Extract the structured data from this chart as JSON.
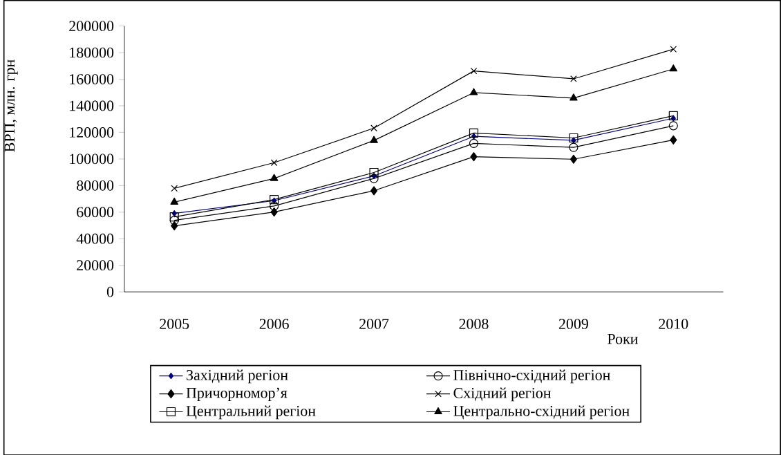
{
  "chart_data": {
    "type": "line",
    "xlabel": "Роки",
    "ylabel": "ВРП, млн. грн",
    "categories": [
      "2005",
      "2006",
      "2007",
      "2008",
      "2009",
      "2010"
    ],
    "ylim": [
      0,
      200000
    ],
    "yticks": [
      0,
      20000,
      40000,
      60000,
      80000,
      100000,
      120000,
      140000,
      160000,
      180000,
      200000
    ],
    "legend": "bottom",
    "line_style": "solid",
    "series": [
      {
        "name": "Західний регіон",
        "color": "#000080",
        "marker": "diamond",
        "values": [
          59000,
          68600,
          87200,
          117000,
          114000,
          130600
        ]
      },
      {
        "name": "Північно-східний регіон",
        "color": "#000000",
        "marker": "circle",
        "values": [
          53800,
          64600,
          85300,
          111700,
          108700,
          125000
        ]
      },
      {
        "name": "Причорномор’я",
        "color": "#000000",
        "marker": "diamond",
        "values": [
          49700,
          60100,
          76100,
          101700,
          99800,
          114300
        ]
      },
      {
        "name": "Східний регіон",
        "color": "#000000",
        "marker": "cross",
        "values": [
          77900,
          97200,
          123200,
          166200,
          160300,
          182600
        ]
      },
      {
        "name": "Центральний регіон",
        "color": "#000000",
        "marker": "square",
        "values": [
          56400,
          69400,
          89800,
          119500,
          115800,
          132500
        ]
      },
      {
        "name": "Центрально-східний регіон",
        "color": "#000000",
        "marker": "triangle",
        "values": [
          67500,
          85300,
          113900,
          149900,
          145800,
          167700
        ]
      }
    ]
  }
}
